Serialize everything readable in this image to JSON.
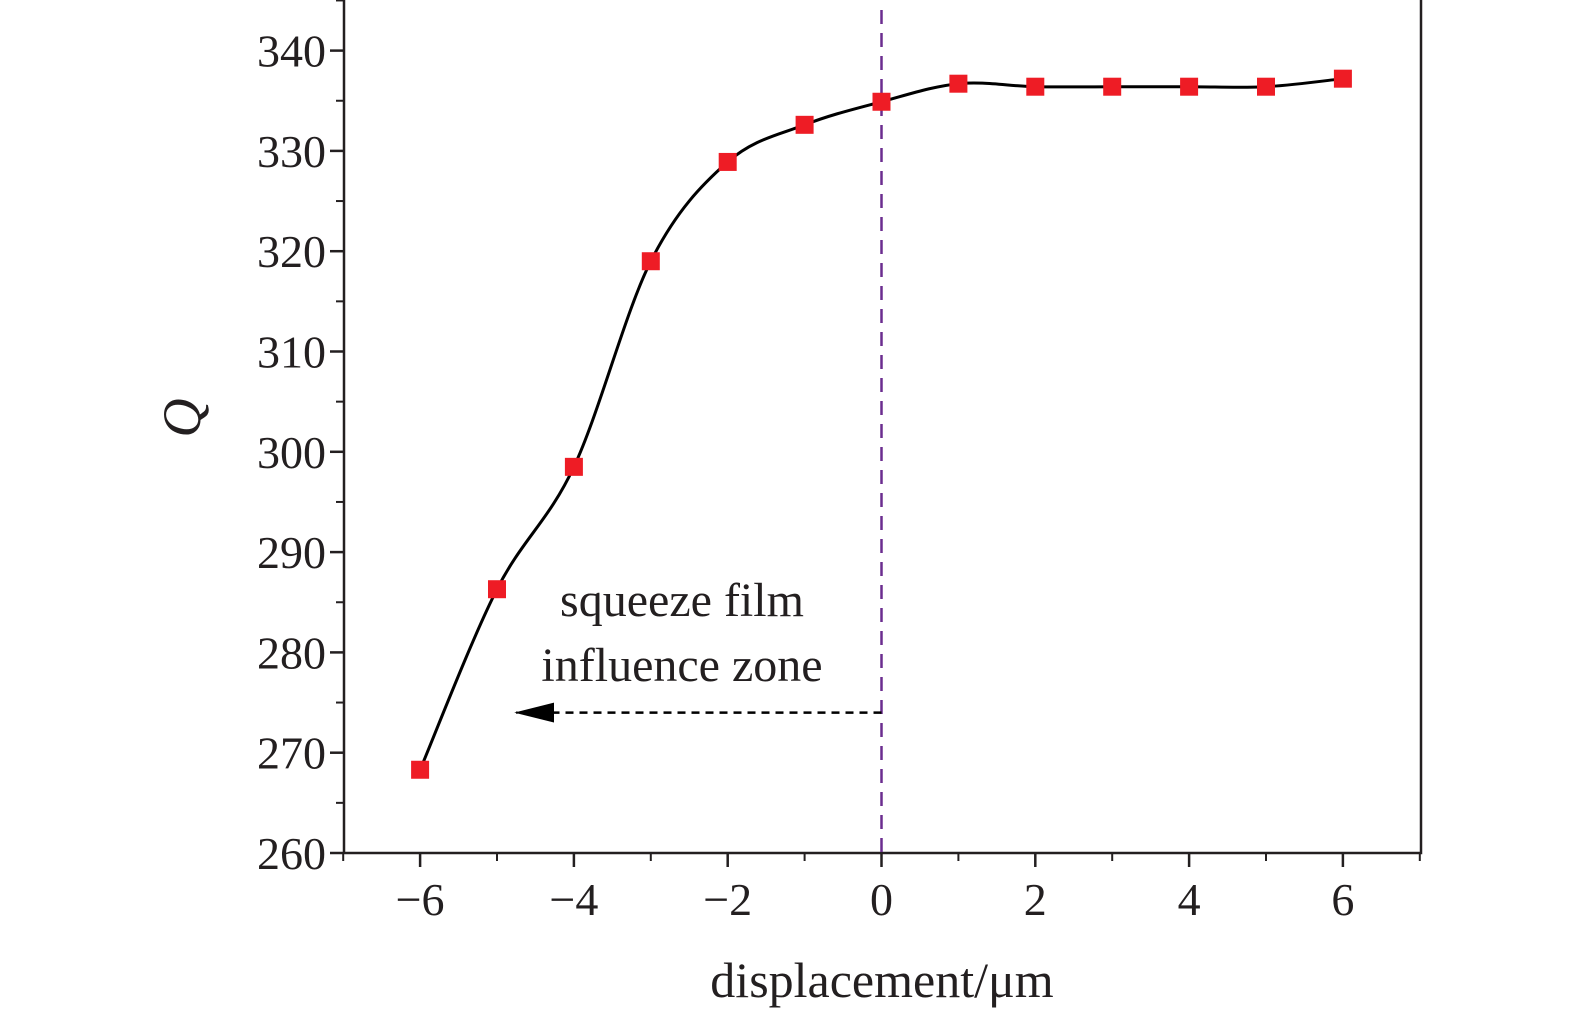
{
  "chart_data": {
    "type": "line",
    "title": "",
    "xlabel": "displacement/μm",
    "ylabel": "Q",
    "xlim": [
      -7,
      7
    ],
    "ylim": [
      260,
      345
    ],
    "x_ticks": [
      -6,
      -4,
      -2,
      0,
      2,
      4,
      6
    ],
    "x_tick_labels": [
      "−6",
      "−4",
      "−2",
      "0",
      "2",
      "4",
      "6"
    ],
    "y_ticks": [
      260,
      270,
      280,
      290,
      300,
      310,
      320,
      330,
      340
    ],
    "y_tick_labels": [
      "260",
      "270",
      "280",
      "290",
      "300",
      "310",
      "320",
      "330",
      "340"
    ],
    "grid": false,
    "series": [
      {
        "marker": "square",
        "marker_color": "#ee1c25",
        "line_color": "#000000",
        "x": [
          -6,
          -5,
          -4,
          -3,
          -2,
          -1,
          0,
          1,
          2,
          3,
          4,
          5,
          6
        ],
        "y": [
          268.3,
          286.3,
          298.5,
          319.0,
          328.9,
          332.6,
          334.9,
          336.7,
          336.4,
          336.4,
          336.4,
          336.4,
          337.2
        ]
      }
    ],
    "reference_line": {
      "x": 0,
      "style": "dashed",
      "color": "#6b2d8f"
    },
    "annotation": {
      "lines": [
        "squeeze film",
        "influence zone"
      ],
      "arrow": {
        "from_x": 0,
        "to_x": -4.75,
        "y": 274,
        "direction": "left",
        "style": "dashed"
      }
    }
  }
}
